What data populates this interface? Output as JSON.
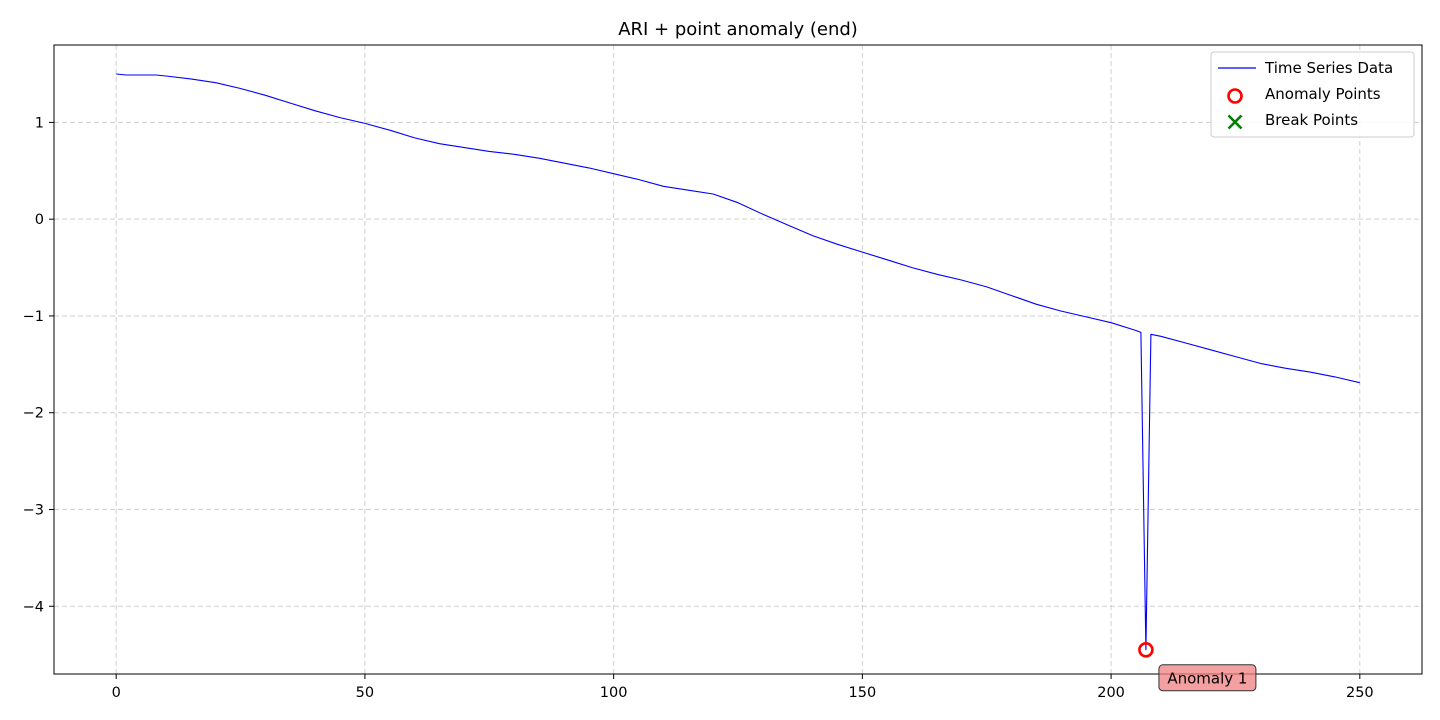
{
  "chart_data": {
    "type": "line",
    "title": "ARI + point anomaly (end)",
    "xlabel": "",
    "ylabel": "",
    "xlim": [
      -12.5,
      262.5
    ],
    "ylim": [
      -4.7,
      1.8
    ],
    "xticks": [
      0,
      50,
      100,
      150,
      200,
      250
    ],
    "yticks": [
      1,
      0,
      -1,
      -2,
      -3,
      -4
    ],
    "xtick_labels": [
      "0",
      "50",
      "100",
      "150",
      "200",
      "250"
    ],
    "ytick_labels": [
      "1",
      "0",
      "−1",
      "−2",
      "−3",
      "−4"
    ],
    "grid": true,
    "legend_position": "top-right",
    "series": [
      {
        "name": "Time Series Data",
        "color": "#0000ff",
        "x": [
          0,
          2,
          4,
          6,
          8,
          10,
          15,
          20,
          25,
          30,
          35,
          40,
          45,
          50,
          55,
          60,
          65,
          70,
          75,
          80,
          85,
          90,
          95,
          100,
          105,
          110,
          115,
          120,
          125,
          130,
          135,
          140,
          145,
          150,
          155,
          160,
          165,
          170,
          175,
          180,
          185,
          190,
          195,
          200,
          205,
          206,
          207,
          208,
          210,
          215,
          220,
          225,
          230,
          235,
          240,
          245,
          250
        ],
        "y": [
          1.5,
          1.49,
          1.49,
          1.49,
          1.49,
          1.48,
          1.45,
          1.41,
          1.35,
          1.28,
          1.2,
          1.12,
          1.05,
          0.99,
          0.92,
          0.84,
          0.78,
          0.74,
          0.7,
          0.67,
          0.63,
          0.58,
          0.53,
          0.47,
          0.41,
          0.34,
          0.3,
          0.26,
          0.17,
          0.05,
          -0.06,
          -0.17,
          -0.26,
          -0.34,
          -0.42,
          -0.5,
          -0.57,
          -0.63,
          -0.7,
          -0.79,
          -0.88,
          -0.95,
          -1.01,
          -1.07,
          -1.15,
          -1.17,
          -4.45,
          -1.19,
          -1.21,
          -1.28,
          -1.35,
          -1.42,
          -1.49,
          -1.54,
          -1.58,
          -1.63,
          -1.69
        ]
      }
    ],
    "anomaly_points": [
      {
        "x": 207,
        "y": -4.45
      }
    ],
    "break_points": [],
    "annotations": [
      {
        "text": "Anomaly 1",
        "x": 207,
        "y": -4.45
      }
    ],
    "legend": [
      {
        "label": "Time Series Data",
        "marker": "line",
        "color": "#0000ff"
      },
      {
        "label": "Anomaly Points",
        "marker": "circle",
        "color": "#ff0000"
      },
      {
        "label": "Break Points",
        "marker": "x",
        "color": "#008000"
      }
    ]
  }
}
